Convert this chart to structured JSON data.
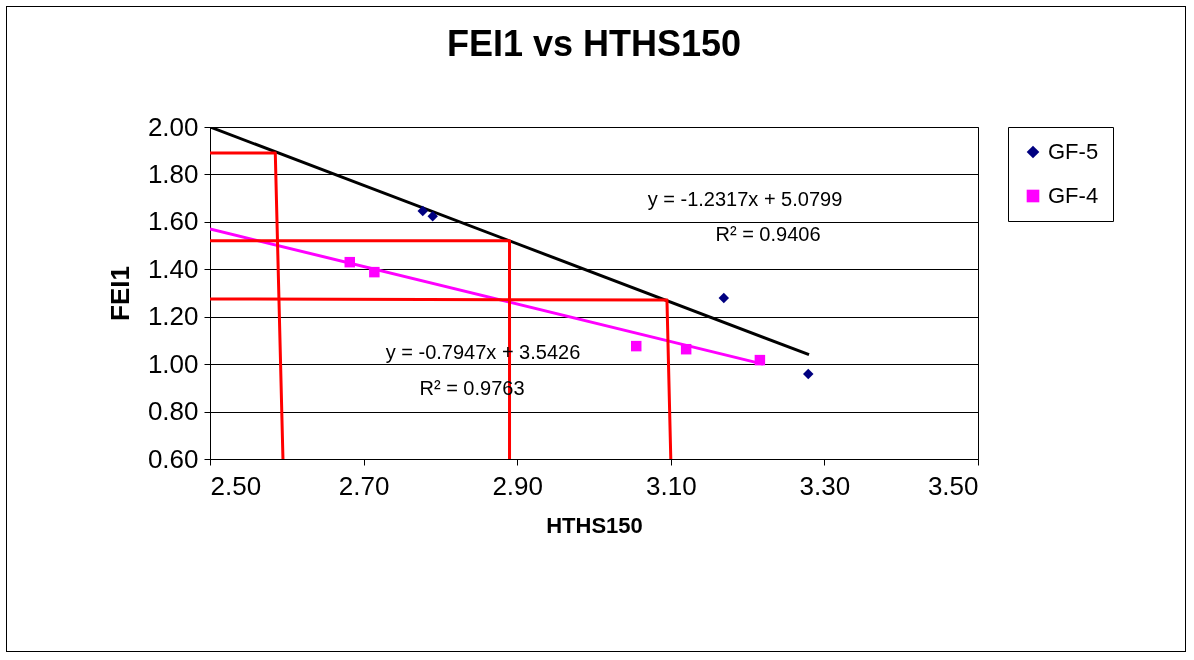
{
  "chart_data": {
    "type": "scatter",
    "title": "FEI1 vs HTHS150",
    "xlabel": "HTHS150",
    "ylabel": "FEI1",
    "xlim": [
      2.5,
      3.5
    ],
    "xticks": [
      {
        "value": 2.5,
        "label": "2.50"
      },
      {
        "value": 2.7,
        "label": "2.70"
      },
      {
        "value": 2.9,
        "label": "2.90"
      },
      {
        "value": 3.1,
        "label": "3.10"
      },
      {
        "value": 3.3,
        "label": "3.30"
      },
      {
        "value": 3.5,
        "label": "3.50"
      }
    ],
    "ylim": [
      0.6,
      2.0
    ],
    "yticks": [
      {
        "value": 0.6,
        "label": "0.60"
      },
      {
        "value": 0.8,
        "label": "0.80"
      },
      {
        "value": 1.0,
        "label": "1.00"
      },
      {
        "value": 1.2,
        "label": "1.20"
      },
      {
        "value": 1.4,
        "label": "1.40"
      },
      {
        "value": 1.6,
        "label": "1.60"
      },
      {
        "value": 1.8,
        "label": "1.80"
      },
      {
        "value": 2.0,
        "label": "2.00"
      }
    ],
    "grid": "y",
    "legend": "right",
    "series": [
      {
        "name": "GF-5",
        "marker": "diamond",
        "color": "#000080",
        "x": [
          2.777,
          2.79,
          3.169,
          3.279
        ],
        "values": [
          1.646,
          1.624,
          1.279,
          0.958
        ]
      },
      {
        "name": "GF-4",
        "marker": "square",
        "color": "#ff00ff",
        "x": [
          2.682,
          2.714,
          3.055,
          3.12,
          3.216
        ],
        "values": [
          1.43,
          1.388,
          1.076,
          1.063,
          1.017
        ]
      },
      {
        "type": "line",
        "color": "#000000",
        "x": [
          2.5,
          3.28
        ],
        "values": [
          2.0,
          1.04
        ]
      },
      {
        "type": "line",
        "color": "#ff00ff",
        "x": [
          2.5,
          3.22
        ],
        "values": [
          1.57,
          1.0
        ]
      },
      {
        "type": "line",
        "color": "#ff0000",
        "x": [
          2.5,
          2.585,
          2.595
        ],
        "values": [
          1.89,
          1.89,
          0.6
        ]
      },
      {
        "type": "line",
        "color": "#ff0000",
        "x": [
          2.5,
          2.89,
          2.89
        ],
        "values": [
          1.52,
          1.52,
          0.6
        ]
      },
      {
        "type": "line",
        "color": "#ff0000",
        "x": [
          2.5,
          3.095,
          3.1
        ],
        "values": [
          1.275,
          1.27,
          0.6
        ]
      }
    ],
    "annotations": [
      "y = -1.2317x + 5.0799",
      "R² = 0.9406",
      "y = -0.7947x + 3.5426",
      "R² = 0.9763"
    ]
  }
}
